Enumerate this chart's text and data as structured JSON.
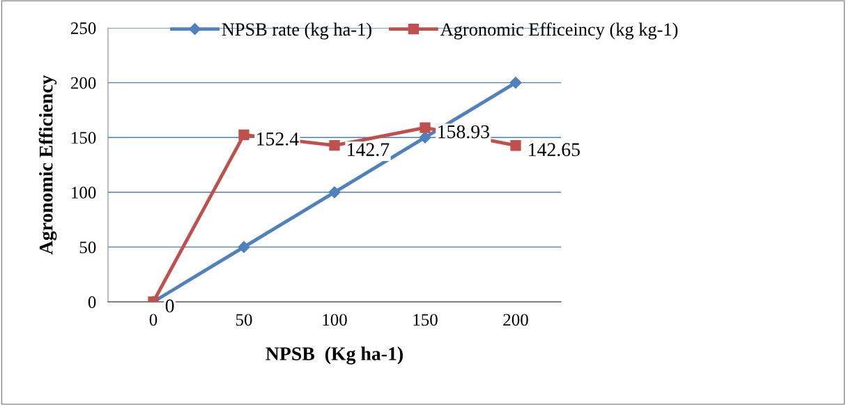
{
  "chart_data": {
    "type": "line",
    "xlabel": "NPSB  (Kg ha-1)",
    "ylabel": "Agronomic Efficiency",
    "categories": [
      "0",
      "50",
      "100",
      "150",
      "200"
    ],
    "series": [
      {
        "name": "NPSB rate (kg ha-1)",
        "color": "#4f81bd",
        "marker": "diamond",
        "values": [
          0,
          50,
          100,
          150,
          200
        ]
      },
      {
        "name": "Agronomic Efficeincy (kg kg-1)",
        "color": "#c0504d",
        "marker": "square",
        "values": [
          0,
          152.4,
          142.7,
          158.93,
          142.65
        ],
        "value_labels": [
          "0",
          "152.4",
          "142.7",
          "158.93",
          "142.65"
        ]
      }
    ],
    "ylim": [
      0,
      250
    ],
    "yticks": [
      0,
      50,
      100,
      150,
      200,
      250
    ],
    "grid": "y",
    "legend": "top"
  }
}
